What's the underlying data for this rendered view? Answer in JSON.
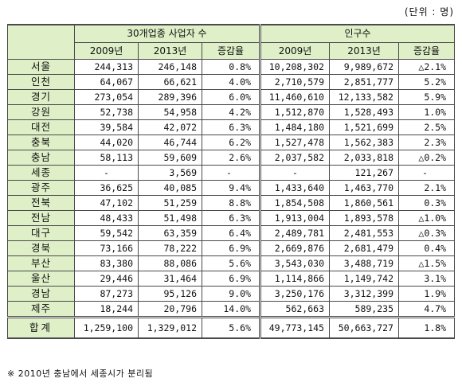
{
  "unit_note": "(단위 : 명)",
  "header": {
    "group_business": "30개업종 사업자 수",
    "group_population": "인구수",
    "col_2009": "2009년",
    "col_2013": "2013년",
    "col_rate": "증감율"
  },
  "rows": [
    {
      "region": "서울",
      "b2009": "244,313",
      "b2013": "246,148",
      "brate": "0.8%",
      "p2009": "10,208,302",
      "p2013": "9,989,672",
      "prate": "△2.1%"
    },
    {
      "region": "인천",
      "b2009": "64,067",
      "b2013": "66,621",
      "brate": "4.0%",
      "p2009": "2,710,579",
      "p2013": "2,851,777",
      "prate": "5.2%"
    },
    {
      "region": "경기",
      "b2009": "273,054",
      "b2013": "289,396",
      "brate": "6.0%",
      "p2009": "11,460,610",
      "p2013": "12,133,582",
      "prate": "5.9%"
    },
    {
      "region": "강원",
      "b2009": "52,738",
      "b2013": "54,958",
      "brate": "4.2%",
      "p2009": "1,512,870",
      "p2013": "1,528,493",
      "prate": "1.0%"
    },
    {
      "region": "대전",
      "b2009": "39,584",
      "b2013": "42,072",
      "brate": "6.3%",
      "p2009": "1,484,180",
      "p2013": "1,521,699",
      "prate": "2.5%"
    },
    {
      "region": "충북",
      "b2009": "44,020",
      "b2013": "46,744",
      "brate": "6.2%",
      "p2009": "1,527,478",
      "p2013": "1,562,383",
      "prate": "2.3%"
    },
    {
      "region": "충남",
      "b2009": "58,113",
      "b2013": "59,609",
      "brate": "2.6%",
      "p2009": "2,037,582",
      "p2013": "2,033,818",
      "prate": "△0.2%"
    },
    {
      "region": "세종",
      "b2009": "-",
      "b2013": "3,569",
      "brate": "-",
      "p2009": "-",
      "p2013": "121,267",
      "prate": "-"
    },
    {
      "region": "광주",
      "b2009": "36,625",
      "b2013": "40,085",
      "brate": "9.4%",
      "p2009": "1,433,640",
      "p2013": "1,463,770",
      "prate": "2.1%"
    },
    {
      "region": "전북",
      "b2009": "47,102",
      "b2013": "51,259",
      "brate": "8.8%",
      "p2009": "1,854,508",
      "p2013": "1,860,561",
      "prate": "0.3%"
    },
    {
      "region": "전남",
      "b2009": "48,433",
      "b2013": "51,498",
      "brate": "6.3%",
      "p2009": "1,913,004",
      "p2013": "1,893,578",
      "prate": "△1.0%"
    },
    {
      "region": "대구",
      "b2009": "59,542",
      "b2013": "63,359",
      "brate": "6.4%",
      "p2009": "2,489,781",
      "p2013": "2,481,553",
      "prate": "△0.3%"
    },
    {
      "region": "경북",
      "b2009": "73,166",
      "b2013": "78,222",
      "brate": "6.9%",
      "p2009": "2,669,876",
      "p2013": "2,681,479",
      "prate": "0.4%"
    },
    {
      "region": "부산",
      "b2009": "83,380",
      "b2013": "88,086",
      "brate": "5.6%",
      "p2009": "3,543,030",
      "p2013": "3,488,719",
      "prate": "△1.5%"
    },
    {
      "region": "울산",
      "b2009": "29,446",
      "b2013": "31,464",
      "brate": "6.9%",
      "p2009": "1,114,866",
      "p2013": "1,149,742",
      "prate": "3.1%"
    },
    {
      "region": "경남",
      "b2009": "87,273",
      "b2013": "95,126",
      "brate": "9.0%",
      "p2009": "3,250,176",
      "p2013": "3,312,399",
      "prate": "1.9%"
    },
    {
      "region": "제주",
      "b2009": "18,244",
      "b2013": "20,796",
      "brate": "14.0%",
      "p2009": "562,663",
      "p2013": "589,235",
      "prate": "4.7%"
    }
  ],
  "total": {
    "region": "합계",
    "b2009": "1,259,100",
    "b2013": "1,329,012",
    "brate": "5.6%",
    "p2009": "49,773,145",
    "p2013": "50,663,727",
    "prate": "1.8%"
  },
  "footnote": "※ 2010년 충남에서 세종시가 분리됨",
  "colors": {
    "header_bg": "#dff0c8",
    "border": "#4a4a4a"
  }
}
